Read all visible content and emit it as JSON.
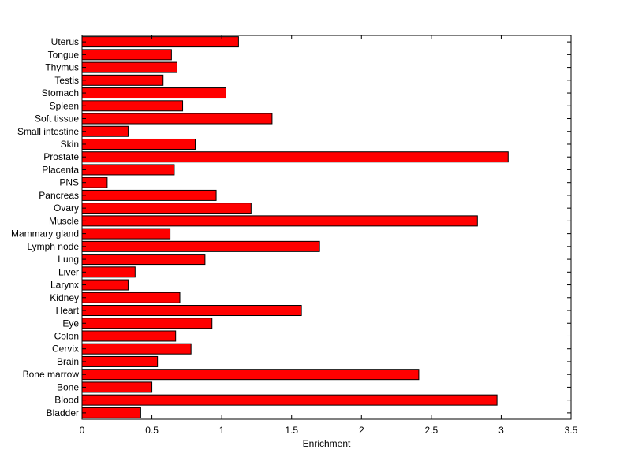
{
  "chart_data": {
    "type": "bar",
    "orientation": "horizontal",
    "title": "",
    "xlabel": "Enrichment",
    "ylabel": "",
    "xlim": [
      0,
      3.5
    ],
    "xticks": [
      "0",
      "0.5",
      "1",
      "1.5",
      "2",
      "2.5",
      "3",
      "3.5"
    ],
    "grid": false,
    "bar_color": "#ff0000",
    "categories": [
      "Bladder",
      "Blood",
      "Bone",
      "Bone marrow",
      "Brain",
      "Cervix",
      "Colon",
      "Eye",
      "Heart",
      "Kidney",
      "Larynx",
      "Liver",
      "Lung",
      "Lymph node",
      "Mammary gland",
      "Muscle",
      "Ovary",
      "Pancreas",
      "PNS",
      "Placenta",
      "Prostate",
      "Skin",
      "Small intestine",
      "Soft tissue",
      "Spleen",
      "Stomach",
      "Testis",
      "Thymus",
      "Tongue",
      "Uterus"
    ],
    "values": [
      0.42,
      2.97,
      0.5,
      2.41,
      0.54,
      0.78,
      0.67,
      0.93,
      1.57,
      0.7,
      0.33,
      0.38,
      0.88,
      1.7,
      0.63,
      2.83,
      1.21,
      0.96,
      0.18,
      0.66,
      3.05,
      0.81,
      0.33,
      1.36,
      0.72,
      1.03,
      0.58,
      0.68,
      0.64,
      1.12
    ]
  }
}
